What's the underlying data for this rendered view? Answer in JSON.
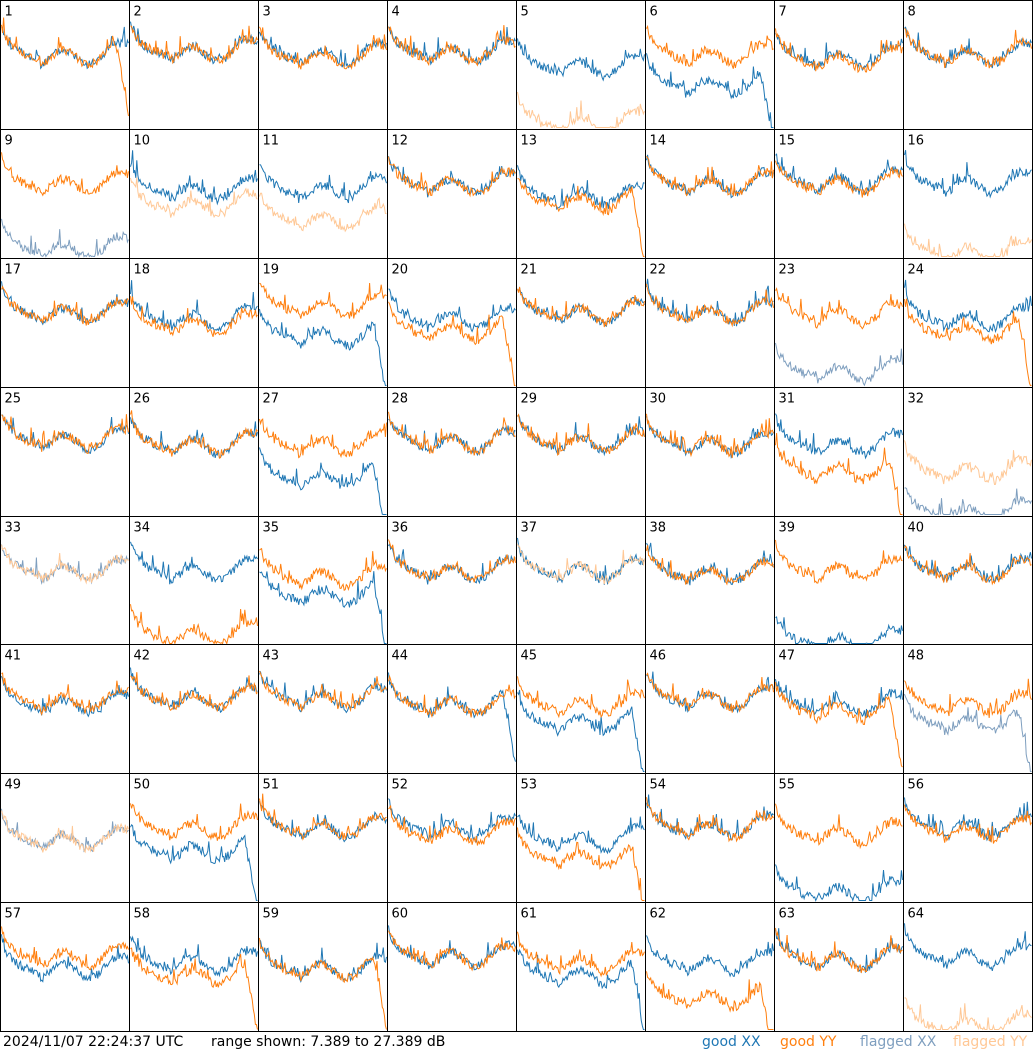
{
  "footer": {
    "timestamp": "2024/11/07 22:24:37 UTC",
    "range_text": "range shown: 7.389 to 27.389 dB"
  },
  "legend": [
    {
      "label": "good XX",
      "color": "#1f77b4"
    },
    {
      "label": "good YY",
      "color": "#ff7f0e"
    },
    {
      "label": "flagged XX",
      "color": "#7f9fbf"
    },
    {
      "label": "flagged YY",
      "color": "#ffc896"
    }
  ],
  "chart_data": {
    "type": "line",
    "ylim_db": [
      7.389,
      27.389
    ],
    "grid": {
      "rows": 8,
      "cols": 8
    },
    "panels": [
      {
        "id": 1,
        "xx": "good",
        "yy": "good",
        "xx_level": 0.6,
        "yy_level": 0.6,
        "yy_drop": true
      },
      {
        "id": 2,
        "xx": "good",
        "yy": "good",
        "xx_level": 0.63,
        "yy_level": 0.63
      },
      {
        "id": 3,
        "xx": "good",
        "yy": "good",
        "xx_level": 0.6,
        "yy_level": 0.58
      },
      {
        "id": 4,
        "xx": "good",
        "yy": "good",
        "xx_level": 0.62,
        "yy_level": 0.62
      },
      {
        "id": 5,
        "xx": "good",
        "yy": "flagged",
        "xx_level": 0.5,
        "yy_level": 0.02
      },
      {
        "id": 6,
        "xx": "good",
        "yy": "good",
        "xx_level": 0.35,
        "yy_level": 0.6,
        "xx_drop": true
      },
      {
        "id": 7,
        "xx": "good",
        "yy": "good",
        "xx_level": 0.58,
        "yy_level": 0.56
      },
      {
        "id": 8,
        "xx": "good",
        "yy": "good",
        "xx_level": 0.6,
        "yy_level": 0.6
      },
      {
        "id": 9,
        "xx": "flagged",
        "yy": "good",
        "xx_level": 0.05,
        "yy_level": 0.6
      },
      {
        "id": 10,
        "xx": "good",
        "yy": "flagged",
        "xx_level": 0.55,
        "yy_level": 0.42
      },
      {
        "id": 11,
        "xx": "good",
        "yy": "flagged",
        "xx_level": 0.55,
        "yy_level": 0.3
      },
      {
        "id": 12,
        "xx": "good",
        "yy": "good",
        "xx_level": 0.6,
        "yy_level": 0.6
      },
      {
        "id": 13,
        "xx": "good",
        "yy": "good",
        "xx_level": 0.5,
        "yy_level": 0.45,
        "yy_drop": true
      },
      {
        "id": 14,
        "xx": "good",
        "yy": "good",
        "xx_level": 0.6,
        "yy_level": 0.6
      },
      {
        "id": 15,
        "xx": "good",
        "yy": "good",
        "xx_level": 0.62,
        "yy_level": 0.6
      },
      {
        "id": 16,
        "xx": "good",
        "yy": "flagged",
        "xx_level": 0.6,
        "yy_level": 0.02
      },
      {
        "id": 17,
        "xx": "good",
        "yy": "good",
        "xx_level": 0.6,
        "yy_level": 0.6
      },
      {
        "id": 18,
        "xx": "good",
        "yy": "good",
        "xx_level": 0.55,
        "yy_level": 0.5
      },
      {
        "id": 19,
        "xx": "good",
        "yy": "good",
        "xx_level": 0.4,
        "yy_level": 0.65,
        "xx_drop": true
      },
      {
        "id": 20,
        "xx": "good",
        "yy": "good",
        "xx_level": 0.55,
        "yy_level": 0.45,
        "yy_drop": true
      },
      {
        "id": 21,
        "xx": "good",
        "yy": "good",
        "xx_level": 0.6,
        "yy_level": 0.6
      },
      {
        "id": 22,
        "xx": "good",
        "yy": "good",
        "xx_level": 0.6,
        "yy_level": 0.6
      },
      {
        "id": 23,
        "xx": "flagged",
        "yy": "good",
        "xx_level": 0.1,
        "yy_level": 0.58
      },
      {
        "id": 24,
        "xx": "good",
        "yy": "good",
        "xx_level": 0.55,
        "yy_level": 0.45,
        "yy_drop": true
      },
      {
        "id": 25,
        "xx": "good",
        "yy": "good",
        "xx_level": 0.62,
        "yy_level": 0.62
      },
      {
        "id": 26,
        "xx": "good",
        "yy": "good",
        "xx_level": 0.58,
        "yy_level": 0.58
      },
      {
        "id": 27,
        "xx": "good",
        "yy": "good",
        "xx_level": 0.3,
        "yy_level": 0.58,
        "xx_drop": true
      },
      {
        "id": 28,
        "xx": "good",
        "yy": "good",
        "xx_level": 0.6,
        "yy_level": 0.6
      },
      {
        "id": 29,
        "xx": "good",
        "yy": "good",
        "xx_level": 0.6,
        "yy_level": 0.6
      },
      {
        "id": 30,
        "xx": "good",
        "yy": "good",
        "xx_level": 0.58,
        "yy_level": 0.58
      },
      {
        "id": 31,
        "xx": "good",
        "yy": "good",
        "xx_level": 0.58,
        "yy_level": 0.35,
        "yy_drop": true
      },
      {
        "id": 32,
        "xx": "flagged",
        "yy": "flagged",
        "xx_level": 0.0,
        "yy_level": 0.35
      },
      {
        "id": 33,
        "xx": "flagged",
        "yy": "flagged",
        "xx_level": 0.6,
        "yy_level": 0.6
      },
      {
        "id": 34,
        "xx": "good",
        "yy": "good",
        "xx_level": 0.6,
        "yy_level": 0.05
      },
      {
        "id": 35,
        "xx": "good",
        "yy": "good",
        "xx_level": 0.4,
        "yy_level": 0.55,
        "xx_drop": true
      },
      {
        "id": 36,
        "xx": "good",
        "yy": "good",
        "xx_level": 0.6,
        "yy_level": 0.6
      },
      {
        "id": 37,
        "xx": "good",
        "yy": "flagged",
        "xx_level": 0.6,
        "yy_level": 0.6
      },
      {
        "id": 38,
        "xx": "good",
        "yy": "good",
        "xx_level": 0.58,
        "yy_level": 0.58
      },
      {
        "id": 39,
        "xx": "good",
        "yy": "good",
        "xx_level": 0.0,
        "yy_level": 0.6
      },
      {
        "id": 40,
        "xx": "good",
        "yy": "good",
        "xx_level": 0.6,
        "yy_level": 0.6
      },
      {
        "id": 41,
        "xx": "good",
        "yy": "good",
        "xx_level": 0.55,
        "yy_level": 0.58
      },
      {
        "id": 42,
        "xx": "good",
        "yy": "good",
        "xx_level": 0.6,
        "yy_level": 0.6
      },
      {
        "id": 43,
        "xx": "good",
        "yy": "good",
        "xx_level": 0.6,
        "yy_level": 0.6
      },
      {
        "id": 44,
        "xx": "good",
        "yy": "good",
        "xx_level": 0.55,
        "yy_level": 0.55,
        "xx_drop": true
      },
      {
        "id": 45,
        "xx": "good",
        "yy": "good",
        "xx_level": 0.4,
        "yy_level": 0.55,
        "xx_drop": true
      },
      {
        "id": 46,
        "xx": "good",
        "yy": "good",
        "xx_level": 0.6,
        "yy_level": 0.6
      },
      {
        "id": 47,
        "xx": "good",
        "yy": "good",
        "xx_level": 0.55,
        "yy_level": 0.5,
        "yy_drop": true
      },
      {
        "id": 48,
        "xx": "flagged",
        "yy": "good",
        "xx_level": 0.4,
        "yy_level": 0.55,
        "xx_drop": true
      },
      {
        "id": 49,
        "xx": "flagged",
        "yy": "flagged",
        "xx_level": 0.5,
        "yy_level": 0.5
      },
      {
        "id": 50,
        "xx": "good",
        "yy": "good",
        "xx_level": 0.4,
        "yy_level": 0.6,
        "xx_drop": true
      },
      {
        "id": 51,
        "xx": "good",
        "yy": "good",
        "xx_level": 0.6,
        "yy_level": 0.6
      },
      {
        "id": 52,
        "xx": "good",
        "yy": "good",
        "xx_level": 0.6,
        "yy_level": 0.55
      },
      {
        "id": 53,
        "xx": "good",
        "yy": "good",
        "xx_level": 0.5,
        "yy_level": 0.35,
        "yy_drop": true
      },
      {
        "id": 54,
        "xx": "good",
        "yy": "good",
        "xx_level": 0.6,
        "yy_level": 0.6
      },
      {
        "id": 55,
        "xx": "good",
        "yy": "good",
        "xx_level": 0.05,
        "yy_level": 0.55
      },
      {
        "id": 56,
        "xx": "good",
        "yy": "good",
        "xx_level": 0.6,
        "yy_level": 0.58
      },
      {
        "id": 57,
        "xx": "good",
        "yy": "good",
        "xx_level": 0.5,
        "yy_level": 0.6
      },
      {
        "id": 58,
        "xx": "good",
        "yy": "good",
        "xx_level": 0.55,
        "yy_level": 0.45,
        "yy_drop": true
      },
      {
        "id": 59,
        "xx": "good",
        "yy": "good",
        "xx_level": 0.5,
        "yy_level": 0.5,
        "yy_drop": true
      },
      {
        "id": 60,
        "xx": "good",
        "yy": "good",
        "xx_level": 0.6,
        "yy_level": 0.6
      },
      {
        "id": 61,
        "xx": "good",
        "yy": "good",
        "xx_level": 0.45,
        "yy_level": 0.55,
        "xx_drop": true
      },
      {
        "id": 62,
        "xx": "good",
        "yy": "good",
        "xx_level": 0.55,
        "yy_level": 0.25,
        "yy_drop": true
      },
      {
        "id": 63,
        "xx": "good",
        "yy": "good",
        "xx_level": 0.58,
        "yy_level": 0.58
      },
      {
        "id": 64,
        "xx": "good",
        "yy": "flagged",
        "xx_level": 0.6,
        "yy_level": 0.02
      }
    ]
  }
}
